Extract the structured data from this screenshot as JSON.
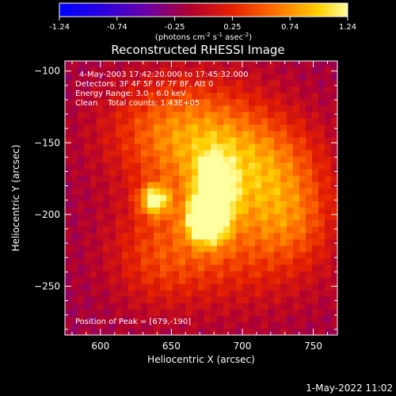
{
  "chart_data": {
    "type": "heatmap",
    "title": "Reconstructed RHESSI Image",
    "xlabel": "Heliocentric X (arcsec)",
    "ylabel": "Heliocentric Y (arcsec)",
    "xlim": [
      575,
      767
    ],
    "ylim": [
      -284,
      -93
    ],
    "xticks": [
      600,
      650,
      700,
      750
    ],
    "yticks": [
      -100,
      -150,
      -200,
      -250
    ],
    "colorbar": {
      "ticks": [
        "-1.24",
        "-0.74",
        "-0.25",
        "0.25",
        "0.74",
        "1.24"
      ],
      "range": [
        -1.24,
        1.24
      ],
      "unit_prefix": "(photons cm",
      "unit_exp1": "-2",
      "unit_mid": " s",
      "unit_exp2": "-1",
      "unit_mid2": " asec",
      "unit_exp3": "-2",
      "unit_suffix": ")"
    },
    "annotations": [
      "4-May-2003 17:42:20.000 to 17:45:32.000",
      "Detectors: 3F 4F 5F 6F 7F 8F, Att 0",
      "Energy Range: 3.0 - 6.0 keV",
      "Clean    Total counts: 1.43E+05"
    ],
    "peak_text": "Position of Peak = [679,-190]",
    "sources": [
      {
        "x": 680,
        "y": -190,
        "sx": 9,
        "sy": 18,
        "amp": 1.24
      },
      {
        "x": 670,
        "y": -205,
        "sx": 8,
        "sy": 10,
        "amp": 0.7
      },
      {
        "x": 638,
        "y": -190,
        "sx": 7,
        "sy": 7,
        "amp": 1.0
      },
      {
        "x": 682,
        "y": -160,
        "sx": 40,
        "sy": 35,
        "amp": 0.55
      },
      {
        "x": 720,
        "y": -170,
        "sx": 30,
        "sy": 25,
        "amp": 0.45
      },
      {
        "x": 650,
        "y": -140,
        "sx": 35,
        "sy": 25,
        "amp": 0.45
      },
      {
        "x": 700,
        "y": -225,
        "sx": 45,
        "sy": 30,
        "amp": 0.4
      },
      {
        "x": 640,
        "y": -230,
        "sx": 25,
        "sy": 25,
        "amp": 0.35
      },
      {
        "x": 735,
        "y": -205,
        "sx": 20,
        "sy": 20,
        "amp": 0.3
      }
    ]
  },
  "footer": {
    "date": "1-May-2022 11:02"
  }
}
